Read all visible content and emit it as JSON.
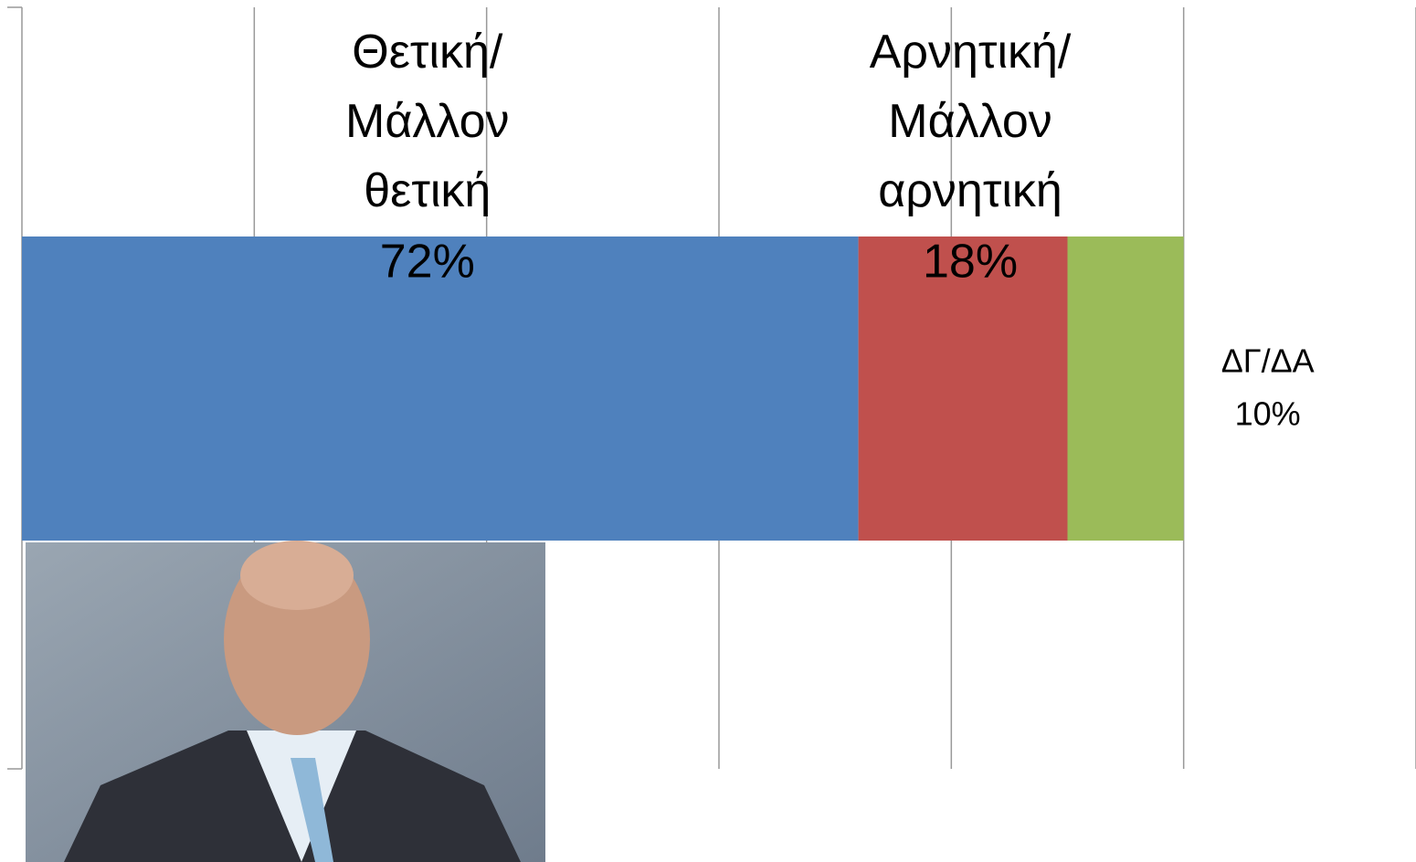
{
  "chart_data": {
    "type": "stacked_bar_horizontal",
    "categories": [
      null
    ],
    "series": [
      {
        "name": "Θετική/ Μάλλον θετική",
        "color": "#4f81bd",
        "values": [
          72
        ],
        "value_labels": [
          "72%"
        ]
      },
      {
        "name": "Αρνητική/ Μάλλον αρνητική",
        "color": "#c0504d",
        "values": [
          18
        ],
        "value_labels": [
          "18%"
        ]
      },
      {
        "name": "ΔΓ/ΔΑ",
        "color": "#9bbb59",
        "values": [
          10
        ],
        "value_labels": [
          "10%"
        ]
      }
    ],
    "xlim": [
      0,
      120
    ],
    "xticks": [
      0,
      20,
      40,
      60,
      80,
      100,
      120
    ],
    "grid": true
  }
}
